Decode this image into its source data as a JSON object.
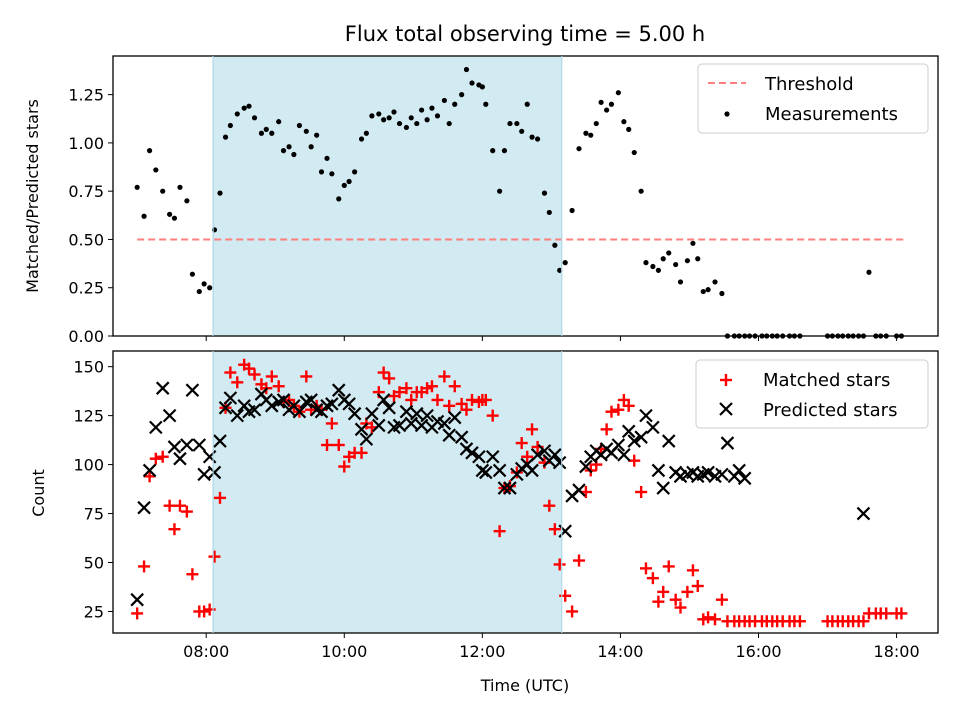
{
  "title": "Flux total observing time = 5.00 h",
  "highlight_color": "#add8e6",
  "chart_data": [
    {
      "type": "scatter",
      "title": "Flux total observing time = 5.00 h",
      "xlabel": "",
      "ylabel": "Matched/Predicted stars",
      "xlim": [
        6.65,
        18.6
      ],
      "ylim": [
        0,
        1.45
      ],
      "x_ticks": [
        8,
        10,
        12,
        14,
        16,
        18
      ],
      "x_tick_labels": [
        "",
        "",
        "",
        "",
        "",
        ""
      ],
      "y_ticks": [
        0,
        0.25,
        0.5,
        0.75,
        1.0,
        1.25
      ],
      "y_tick_labels": [
        "0.00",
        "0.25",
        "0.50",
        "0.75",
        "1.00",
        "1.25"
      ],
      "highlight_span": [
        8.1,
        13.15
      ],
      "legend_position": "upper right",
      "series": [
        {
          "name": "Threshold",
          "kind": "line",
          "color": "#ff7f7f",
          "dash": true,
          "x": [
            7.0,
            18.1
          ],
          "y": [
            0.5,
            0.5
          ]
        },
        {
          "name": "Measurements",
          "kind": "dot",
          "color": "#000000",
          "x": [
            7.0,
            7.1,
            7.18,
            7.27,
            7.37,
            7.47,
            7.54,
            7.62,
            7.72,
            7.8,
            7.9,
            7.97,
            8.05,
            8.12,
            8.2,
            8.28,
            8.35,
            8.45,
            8.55,
            8.62,
            8.7,
            8.8,
            8.87,
            8.95,
            9.05,
            9.12,
            9.2,
            9.27,
            9.35,
            9.45,
            9.52,
            9.6,
            9.67,
            9.75,
            9.82,
            9.92,
            10.0,
            10.07,
            10.15,
            10.25,
            10.32,
            10.4,
            10.5,
            10.57,
            10.65,
            10.72,
            10.8,
            10.9,
            10.97,
            11.05,
            11.12,
            11.2,
            11.27,
            11.35,
            11.45,
            11.52,
            11.6,
            11.7,
            11.77,
            11.85,
            11.95,
            12.0,
            12.05,
            12.15,
            12.25,
            12.32,
            12.4,
            12.5,
            12.57,
            12.65,
            12.72,
            12.8,
            12.9,
            12.97,
            13.05,
            13.12,
            13.2,
            13.3,
            13.4,
            13.5,
            13.57,
            13.65,
            13.72,
            13.8,
            13.87,
            13.97,
            14.05,
            14.12,
            14.2,
            14.3,
            14.37,
            14.47,
            14.55,
            14.62,
            14.7,
            14.8,
            14.87,
            14.97,
            15.05,
            15.12,
            15.2,
            15.27,
            15.37,
            15.47,
            15.55,
            15.65,
            15.72,
            15.8,
            15.87,
            15.95,
            16.05,
            16.12,
            16.2,
            16.27,
            16.35,
            16.45,
            16.52,
            16.6,
            17.0,
            17.07,
            17.15,
            17.22,
            17.3,
            17.37,
            17.45,
            17.52,
            17.6,
            17.7,
            17.77,
            17.85,
            18.0,
            18.07
          ],
          "y": [
            0.77,
            0.62,
            0.96,
            0.86,
            0.75,
            0.63,
            0.61,
            0.77,
            0.7,
            0.32,
            0.23,
            0.27,
            0.25,
            0.55,
            0.74,
            1.03,
            1.09,
            1.15,
            1.18,
            1.19,
            1.13,
            1.05,
            1.07,
            1.05,
            1.11,
            0.96,
            0.98,
            0.94,
            1.09,
            1.06,
            0.98,
            1.04,
            0.85,
            0.92,
            0.84,
            0.71,
            0.78,
            0.8,
            0.85,
            1.02,
            1.05,
            1.14,
            1.15,
            1.12,
            1.13,
            1.16,
            1.1,
            1.08,
            1.13,
            1.1,
            1.17,
            1.12,
            1.18,
            1.14,
            1.22,
            1.1,
            1.2,
            1.25,
            1.38,
            1.31,
            1.3,
            1.29,
            1.2,
            0.96,
            0.75,
            0.96,
            1.1,
            1.1,
            1.06,
            1.2,
            1.03,
            1.02,
            0.74,
            0.64,
            0.47,
            0.34,
            0.38,
            0.65,
            0.97,
            1.05,
            1.04,
            1.1,
            1.21,
            1.17,
            1.2,
            1.26,
            1.11,
            1.07,
            0.95,
            0.75,
            0.38,
            0.36,
            0.34,
            0.4,
            0.43,
            0.37,
            0.28,
            0.39,
            0.48,
            0.4,
            0.23,
            0.24,
            0.28,
            0.22,
            0.0,
            0.0,
            0.0,
            0.0,
            0.0,
            0.0,
            0.0,
            0.0,
            0.0,
            0.0,
            0.0,
            0.0,
            0.0,
            0.0,
            0.0,
            0.0,
            0.0,
            0.0,
            0.0,
            0.0,
            0.0,
            0.0,
            0.33,
            0.0,
            0.0,
            0.0,
            0.0,
            0.0
          ]
        }
      ]
    },
    {
      "type": "scatter",
      "title": "",
      "xlabel": "Time (UTC)",
      "ylabel": "Count",
      "xlim": [
        6.65,
        18.6
      ],
      "ylim": [
        14,
        158
      ],
      "x_ticks": [
        8,
        10,
        12,
        14,
        16,
        18
      ],
      "x_tick_labels": [
        "08:00",
        "10:00",
        "12:00",
        "14:00",
        "16:00",
        "18:00"
      ],
      "y_ticks": [
        25,
        50,
        75,
        100,
        125,
        150
      ],
      "y_tick_labels": [
        "25",
        "50",
        "75",
        "100",
        "125",
        "150"
      ],
      "highlight_span": [
        8.1,
        13.15
      ],
      "legend_position": "upper right",
      "series": [
        {
          "name": "Matched stars",
          "kind": "plus",
          "color": "#ff0000",
          "x": [
            7.0,
            7.1,
            7.18,
            7.27,
            7.37,
            7.47,
            7.54,
            7.62,
            7.72,
            7.8,
            7.9,
            7.97,
            8.05,
            8.12,
            8.2,
            8.28,
            8.35,
            8.45,
            8.55,
            8.62,
            8.7,
            8.8,
            8.87,
            8.95,
            9.05,
            9.12,
            9.2,
            9.27,
            9.35,
            9.45,
            9.52,
            9.6,
            9.67,
            9.75,
            9.82,
            9.92,
            10.0,
            10.07,
            10.15,
            10.25,
            10.32,
            10.4,
            10.5,
            10.57,
            10.65,
            10.72,
            10.8,
            10.9,
            10.97,
            11.05,
            11.12,
            11.2,
            11.27,
            11.35,
            11.45,
            11.52,
            11.6,
            11.7,
            11.77,
            11.85,
            11.95,
            12.0,
            12.05,
            12.15,
            12.25,
            12.32,
            12.4,
            12.5,
            12.57,
            12.65,
            12.72,
            12.8,
            12.9,
            12.97,
            13.05,
            13.12,
            13.2,
            13.3,
            13.4,
            13.5,
            13.57,
            13.65,
            13.72,
            13.8,
            13.87,
            13.97,
            14.05,
            14.12,
            14.2,
            14.3,
            14.37,
            14.47,
            14.55,
            14.62,
            14.7,
            14.8,
            14.87,
            14.97,
            15.05,
            15.12,
            15.2,
            15.27,
            15.37,
            15.47,
            15.55,
            15.65,
            15.72,
            15.8,
            15.87,
            15.95,
            16.05,
            16.12,
            16.2,
            16.27,
            16.35,
            16.45,
            16.52,
            16.6,
            17.0,
            17.07,
            17.15,
            17.22,
            17.3,
            17.37,
            17.45,
            17.52,
            17.6,
            17.7,
            17.77,
            17.85,
            18.0,
            18.07
          ],
          "y": [
            24,
            48,
            94,
            103,
            104,
            79,
            67,
            79,
            76,
            44,
            25,
            25,
            26,
            53,
            83,
            129,
            147,
            142,
            151,
            149,
            146,
            141,
            139,
            145,
            140,
            132,
            133,
            130,
            127,
            145,
            128,
            130,
            128,
            110,
            121,
            110,
            99,
            104,
            106,
            106,
            121,
            119,
            137,
            147,
            144,
            135,
            137,
            139,
            133,
            137,
            137,
            139,
            140,
            133,
            145,
            130,
            140,
            131,
            128,
            133,
            132,
            133,
            133,
            125,
            66,
            88,
            89,
            96,
            111,
            104,
            118,
            109,
            101,
            79,
            67,
            49,
            33,
            25,
            51,
            86,
            97,
            100,
            108,
            118,
            127,
            128,
            133,
            130,
            102,
            86,
            47,
            42,
            30,
            35,
            48,
            31,
            27,
            35,
            46,
            38,
            21,
            22,
            21,
            31,
            20,
            20,
            20,
            20,
            20,
            20,
            20,
            20,
            20,
            20,
            20,
            20,
            20,
            20,
            20,
            20,
            20,
            20,
            20,
            20,
            20,
            20,
            24,
            24,
            24,
            24,
            24,
            24
          ]
        },
        {
          "name": "Predicted stars",
          "kind": "x",
          "color": "#000000",
          "x": [
            7.0,
            7.1,
            7.18,
            7.27,
            7.37,
            7.47,
            7.54,
            7.62,
            7.72,
            7.8,
            7.9,
            7.97,
            8.05,
            8.12,
            8.2,
            8.28,
            8.35,
            8.45,
            8.55,
            8.62,
            8.7,
            8.8,
            8.87,
            8.95,
            9.05,
            9.12,
            9.2,
            9.27,
            9.35,
            9.45,
            9.52,
            9.6,
            9.67,
            9.75,
            9.82,
            9.92,
            10.0,
            10.07,
            10.15,
            10.25,
            10.32,
            10.4,
            10.5,
            10.57,
            10.65,
            10.72,
            10.8,
            10.9,
            10.97,
            11.05,
            11.12,
            11.2,
            11.27,
            11.35,
            11.45,
            11.52,
            11.6,
            11.7,
            11.77,
            11.85,
            11.95,
            12.0,
            12.05,
            12.15,
            12.25,
            12.32,
            12.4,
            12.5,
            12.57,
            12.65,
            12.72,
            12.8,
            12.9,
            12.97,
            13.05,
            13.12,
            13.2,
            13.3,
            13.4,
            13.5,
            13.57,
            13.65,
            13.72,
            13.8,
            13.87,
            13.97,
            14.05,
            14.12,
            14.2,
            14.3,
            14.37,
            14.47,
            14.55,
            14.62,
            14.7,
            14.8,
            14.87,
            14.97,
            15.05,
            15.12,
            15.2,
            15.27,
            15.37,
            15.47,
            15.55,
            15.65,
            15.72,
            15.8,
            17.52
          ],
          "y": [
            31,
            78,
            97,
            119,
            139,
            125,
            109,
            103,
            110,
            138,
            110,
            95,
            104,
            96,
            112,
            129,
            134,
            125,
            130,
            127,
            128,
            136,
            133,
            130,
            132,
            133,
            128,
            130,
            127,
            132,
            133,
            128,
            127,
            130,
            131,
            138,
            133,
            131,
            126,
            118,
            113,
            126,
            120,
            133,
            129,
            119,
            120,
            127,
            121,
            126,
            120,
            125,
            119,
            122,
            121,
            115,
            124,
            114,
            108,
            106,
            104,
            97,
            96,
            104,
            97,
            88,
            88,
            95,
            98,
            100,
            97,
            105,
            107,
            102,
            105,
            101,
            66,
            84,
            87,
            99,
            104,
            107,
            105,
            108,
            106,
            110,
            105,
            117,
            112,
            114,
            125,
            119,
            97,
            88,
            112,
            96,
            94,
            95,
            96,
            94,
            95,
            96,
            94,
            95,
            111,
            94,
            97,
            93,
            75
          ]
        }
      ]
    }
  ]
}
